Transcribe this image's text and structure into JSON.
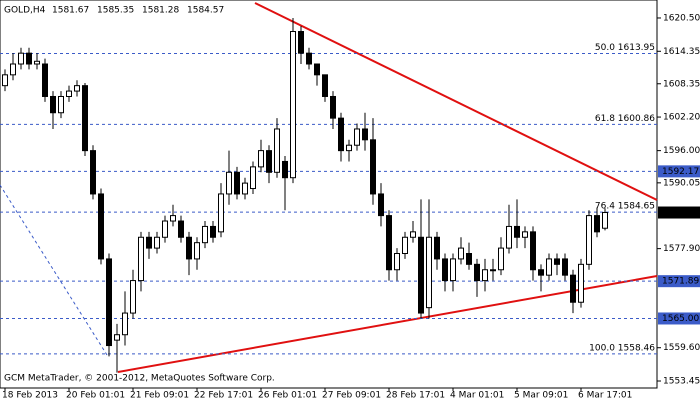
{
  "chart_data": {
    "type": "candlestick",
    "title": "GOLD,H4",
    "footer": "GCM MetaTrader, © 2001-2012, MetaQuotes Software Corp.",
    "categories": [
      "18 Feb 2013",
      null,
      null,
      null,
      null,
      null,
      null,
      null,
      "20 Feb 01:01",
      null,
      null,
      null,
      null,
      null,
      null,
      null,
      "21 Feb 09:01",
      null,
      null,
      null,
      null,
      null,
      null,
      null,
      "22 Feb 17:01",
      null,
      null,
      null,
      null,
      null,
      null,
      null,
      "26 Feb 01:01",
      null,
      null,
      null,
      null,
      null,
      null,
      null,
      "27 Feb 09:01",
      null,
      null,
      null,
      null,
      null,
      null,
      null,
      "28 Feb 17:01",
      null,
      null,
      null,
      null,
      null,
      null,
      null,
      "4 Mar 01:01",
      null,
      null,
      null,
      null,
      null,
      null,
      null,
      "5 Mar 09:01",
      null,
      null,
      null,
      null,
      null,
      null,
      null,
      "6 Mar 17:01",
      null,
      null,
      null
    ],
    "open": [
      1608,
      1610,
      1612,
      1614,
      1612,
      1612,
      1606,
      1603,
      1606,
      1607,
      1608,
      1596,
      1588,
      1576,
      1561,
      1562,
      1566,
      1572,
      1580,
      1578,
      1580,
      1583,
      1583,
      1580,
      1576,
      1579,
      1582,
      1581,
      1588,
      1592,
      1588,
      1589,
      1593,
      1596,
      1592,
      1594,
      1591,
      1618,
      1614,
      1612,
      1610,
      1606,
      1602,
      1596,
      1597,
      1600,
      1598,
      1588,
      1584,
      1574,
      1577,
      1580,
      1580,
      1567,
      1580,
      1576,
      1572,
      1576,
      1577,
      1575,
      1572,
      1574,
      1574,
      1578,
      1582,
      1580,
      1581,
      1574,
      1573,
      1576,
      1576,
      1573,
      1568,
      1575,
      1584,
      1581.67
    ],
    "high": [
      1611,
      1614,
      1615,
      1615,
      1614,
      1613,
      1607,
      1607,
      1608,
      1609,
      1608.5,
      1597,
      1589,
      1577,
      1564,
      1570,
      1574,
      1581,
      1581,
      1581,
      1584,
      1586,
      1584,
      1581,
      1580,
      1583,
      1583,
      1590,
      1596,
      1593,
      1591,
      1594,
      1598,
      1597,
      1602,
      1595,
      1620.5,
      1619,
      1615,
      1612,
      1610,
      1607,
      1603,
      1598,
      1601,
      1603,
      1602,
      1590,
      1585,
      1578,
      1581,
      1583,
      1587,
      1587,
      1581,
      1577,
      1577,
      1580,
      1579,
      1576,
      1576,
      1576,
      1580,
      1586,
      1587,
      1582,
      1582,
      1575,
      1577,
      1577,
      1577,
      1574,
      1576,
      1585,
      1585.5,
      1585.35
    ],
    "low": [
      1607,
      1609,
      1611,
      1611,
      1611,
      1605,
      1600,
      1602,
      1605,
      1606,
      1595,
      1587,
      1575,
      1558,
      1555,
      1560,
      1565,
      1570,
      1576,
      1577,
      1579,
      1582,
      1579,
      1573,
      1574,
      1578,
      1579,
      1580,
      1586,
      1587,
      1587,
      1588,
      1592,
      1590,
      1591,
      1585,
      1590,
      1612,
      1611,
      1608,
      1605,
      1600,
      1594,
      1594,
      1596,
      1596,
      1586,
      1582,
      1572,
      1572,
      1576,
      1579,
      1565,
      1565,
      1574,
      1570,
      1570,
      1575,
      1574,
      1569,
      1570,
      1572,
      1573,
      1577,
      1578,
      1578,
      1572,
      1570,
      1572,
      1573,
      1572,
      1566,
      1567,
      1574,
      1580,
      1581.28
    ],
    "close": [
      1610,
      1612,
      1614,
      1612,
      1612.5,
      1606,
      1603,
      1606,
      1607,
      1608,
      1596,
      1588,
      1576,
      1560,
      1562,
      1566,
      1572,
      1580,
      1578,
      1580,
      1583,
      1584,
      1580,
      1576,
      1579,
      1582,
      1580,
      1588,
      1592,
      1588,
      1590,
      1593,
      1596,
      1592,
      1600,
      1591,
      1618,
      1614,
      1612,
      1610,
      1606,
      1602,
      1596,
      1597,
      1600,
      1598,
      1588,
      1584,
      1574,
      1577,
      1580,
      1581,
      1566,
      1580,
      1576,
      1572,
      1576,
      1578,
      1575,
      1572,
      1574,
      1574,
      1578,
      1582,
      1580,
      1581,
      1574,
      1573,
      1576,
      1575,
      1573,
      1568,
      1575,
      1584,
      1581,
      1584.57
    ],
    "up_color": "#ffffff",
    "down_color": "#000000",
    "ylim": [
      1552.16,
      1623.82
    ],
    "yticks": [
      {
        "value": 1620.5,
        "label": "1620.50"
      },
      1614.35,
      1608.35,
      {
        "value": 1602.2,
        "label": "1602.20"
      },
      {
        "value": 1596,
        "label": "1596.00"
      },
      1590.05,
      {
        "value": 1577.9,
        "label": "1577.90"
      },
      {
        "value": 1559.6,
        "label": "1559.60"
      },
      1553.45
    ],
    "levels": [
      1592.17,
      1571.89,
      {
        "value": 1565,
        "label": "1565.00"
      }
    ],
    "fib_levels": [
      {
        "value": 1613.95,
        "label": "50.0 1613.95"
      },
      {
        "value": 1600.86,
        "label": "61.8 1600.86"
      },
      {
        "value": 1584.65,
        "label": "76.4 1584.65"
      },
      {
        "value": 1558.46,
        "label": "100.0 1558.46"
      }
    ],
    "level_color": "#3b5bc8"
  }
}
